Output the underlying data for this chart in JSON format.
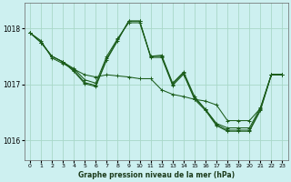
{
  "title": "Graphe pression niveau de la mer (hPa)",
  "background_color": "#cdf0f0",
  "grid_color": "#a8d8c8",
  "line_color": "#1a5c1a",
  "xlim": [
    -0.5,
    23.5
  ],
  "ylim": [
    1015.65,
    1018.45
  ],
  "yticks": [
    1016,
    1017,
    1018
  ],
  "x_ticks": [
    0,
    1,
    2,
    3,
    4,
    5,
    6,
    7,
    8,
    9,
    10,
    11,
    12,
    13,
    14,
    15,
    16,
    17,
    18,
    19,
    20,
    21,
    22,
    23
  ],
  "series": [
    [
      1017.92,
      1017.78,
      1017.47,
      1017.37,
      1017.27,
      1017.17,
      1017.13,
      1017.17,
      1017.15,
      1017.13,
      1017.1,
      1017.1,
      1016.9,
      1016.82,
      1016.78,
      1016.73,
      1016.7,
      1016.63,
      1016.35,
      1016.35,
      1016.35,
      1016.57,
      1017.17,
      1017.17
    ],
    [
      1017.92,
      1017.75,
      1017.5,
      1017.4,
      1017.28,
      1017.08,
      1017.02,
      1017.5,
      1017.82,
      1018.1,
      1018.1,
      1017.5,
      1017.52,
      1017.02,
      1017.22,
      1016.78,
      1016.55,
      1016.3,
      1016.22,
      1016.22,
      1016.22,
      1016.58,
      1017.18,
      1017.18
    ],
    [
      1017.92,
      1017.75,
      1017.5,
      1017.4,
      1017.25,
      1017.03,
      1016.98,
      1017.46,
      1017.8,
      1018.13,
      1018.13,
      1017.5,
      1017.5,
      1017.0,
      1017.2,
      1016.75,
      1016.55,
      1016.28,
      1016.18,
      1016.18,
      1016.18,
      1016.55,
      1017.17,
      1017.17
    ],
    [
      1017.92,
      1017.75,
      1017.5,
      1017.4,
      1017.23,
      1017.01,
      1016.96,
      1017.44,
      1017.78,
      1018.13,
      1018.13,
      1017.48,
      1017.48,
      1016.98,
      1017.18,
      1016.73,
      1016.53,
      1016.26,
      1016.16,
      1016.16,
      1016.16,
      1016.53,
      1017.17,
      1017.17
    ]
  ]
}
